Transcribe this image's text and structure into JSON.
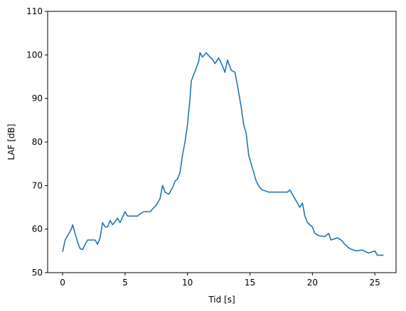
{
  "chart_data": {
    "type": "line",
    "xlabel": "Tid [s]",
    "ylabel": "LAF [dB]",
    "xlim": [
      -1.2,
      26.7
    ],
    "ylim": [
      50,
      110
    ],
    "xticks": [
      0,
      5,
      10,
      15,
      20,
      25
    ],
    "yticks": [
      50,
      60,
      70,
      80,
      90,
      100,
      110
    ],
    "series": [
      {
        "color": "#1f77b4",
        "x": [
          0,
          0.2,
          0.4,
          0.6,
          0.7,
          0.8,
          1.0,
          1.2,
          1.4,
          1.6,
          1.8,
          2.0,
          2.4,
          2.6,
          2.8,
          3.0,
          3.2,
          3.4,
          3.6,
          3.8,
          4.0,
          4.4,
          4.6,
          5.0,
          5.2,
          5.6,
          6.0,
          6.2,
          6.5,
          7.0,
          7.5,
          7.8,
          8.0,
          8.2,
          8.5,
          8.8,
          9.0,
          9.2,
          9.4,
          9.6,
          9.8,
          10.0,
          10.2,
          10.3,
          10.5,
          10.7,
          10.9,
          11.0,
          11.2,
          11.5,
          11.8,
          12.0,
          12.2,
          12.5,
          12.8,
          13.0,
          13.2,
          13.5,
          13.8,
          14.0,
          14.3,
          14.5,
          14.7,
          14.9,
          15.1,
          15.3,
          15.5,
          15.8,
          16.0,
          16.5,
          17.0,
          17.5,
          18.0,
          18.2,
          18.5,
          19.0,
          19.2,
          19.4,
          19.6,
          20.0,
          20.2,
          20.5,
          21.0,
          21.3,
          21.5,
          22.0,
          22.3,
          22.6,
          23.0,
          23.5,
          24.0,
          24.5,
          25.0,
          25.2,
          25.7
        ],
        "values": [
          54.8,
          57.5,
          58.5,
          59.5,
          60,
          61,
          59,
          57,
          55.5,
          55.3,
          56.5,
          57.5,
          57.5,
          57.5,
          56.5,
          58,
          61.5,
          60.5,
          60.5,
          62,
          61,
          62.5,
          61.5,
          64,
          63,
          63,
          63,
          63.5,
          64,
          64,
          65.5,
          67,
          70,
          68.5,
          68,
          69.5,
          71,
          71.5,
          73,
          77,
          80,
          84,
          90,
          94,
          95.5,
          97,
          98.5,
          100.5,
          99.5,
          100.5,
          99.5,
          99,
          98,
          99.3,
          97.5,
          96,
          98.8,
          96.5,
          96,
          93,
          88,
          84,
          82,
          77,
          75,
          73,
          71,
          69.5,
          69,
          68.5,
          68.5,
          68.5,
          68.5,
          69,
          67.5,
          65,
          66,
          63,
          61.5,
          60.5,
          59,
          58.5,
          58.3,
          59,
          57.5,
          58,
          57.5,
          56.5,
          55.5,
          55,
          55.2,
          54.5,
          55,
          54,
          54
        ]
      }
    ]
  }
}
